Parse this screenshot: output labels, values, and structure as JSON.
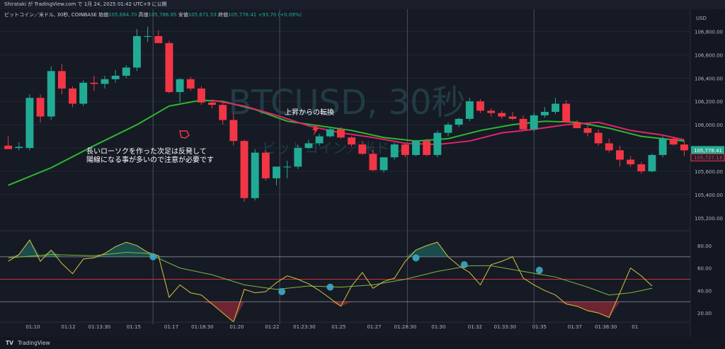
{
  "header": {
    "publish_line": "Shirataki が TradingView.com で 1月 24, 2025 01:42 UTC+9 に公開"
  },
  "footer": {
    "brand": "TradingView",
    "logo_glyph": "TV"
  },
  "legend": {
    "symbol": "ビットコイン／米ドル, 30秒, COINBASE",
    "open_label": "始値",
    "open": "105,684.70",
    "high_label": "高値",
    "high": "105,786.85",
    "low_label": "安値",
    "low": "105,671.53",
    "close_label": "終値",
    "close": "105,778.41",
    "change": "+93.70 (+0.09%)"
  },
  "watermark": {
    "main": "BTCUSD, 30秒",
    "sub": "ビットコイン／米ドル"
  },
  "annotations": {
    "note_line1": "長いローソクを作った次足は反発して",
    "note_line2": "陽線になる事が多いので注意が必要です",
    "trend_text": "上昇からの転換"
  },
  "currency_label": "USD",
  "price_badges": {
    "last": "105,778.41",
    "ma": "105,727.13"
  },
  "colors": {
    "up": "#22ab94",
    "down": "#f23645",
    "ma_fast": "#2db82d",
    "ma_slow": "#e0246c",
    "osc": "#d4c43a",
    "osc_signal": "#7fb83a",
    "cross_marker": "#3fa9c4",
    "bg": "#161a25",
    "grid": "#232734"
  },
  "chart_data": {
    "type": "candlestick",
    "price_axis": {
      "ticks": [
        105400,
        105600,
        105800,
        106000,
        106200,
        106400,
        106600,
        106800
      ],
      "tick_labels": [
        "105,400.00",
        "105,600.00",
        "105,800.00",
        "106,000.00",
        "106,200.00",
        "106,400.00",
        "106,600.00",
        "106,800.00",
        "105,200.00"
      ],
      "bottom_label_value": 105200,
      "ylim": [
        105120,
        106930
      ]
    },
    "time_axis": {
      "labels": [
        "01:10",
        "01:12",
        "01:13:30",
        "01:15",
        "01:17",
        "01:18:30",
        "01:20",
        "01:22",
        "01:23:30",
        "01:25",
        "01:27",
        "01:28:30",
        "01:30",
        "01:32",
        "01:33:30",
        "01:35",
        "01:37",
        "01:38:30",
        "01"
      ],
      "label_candle_index": [
        2.3,
        5.6,
        8.5,
        11.7,
        15.2,
        18.1,
        21.3,
        24.6,
        27.6,
        30.8,
        34.1,
        37.0,
        40.1,
        43.5,
        46.3,
        49.5,
        52.8,
        55.7,
        58.4
      ]
    },
    "candles": [
      {
        "o": 105820,
        "h": 105900,
        "l": 105800,
        "c": 105790
      },
      {
        "o": 105800,
        "h": 105850,
        "l": 105780,
        "c": 105810
      },
      {
        "o": 105800,
        "h": 106260,
        "l": 105780,
        "c": 106230
      },
      {
        "o": 106230,
        "h": 106260,
        "l": 106020,
        "c": 106070
      },
      {
        "o": 106070,
        "h": 106500,
        "l": 106040,
        "c": 106460
      },
      {
        "o": 106460,
        "h": 106520,
        "l": 106260,
        "c": 106310
      },
      {
        "o": 106310,
        "h": 106330,
        "l": 106150,
        "c": 106180
      },
      {
        "o": 106180,
        "h": 106380,
        "l": 106160,
        "c": 106360
      },
      {
        "o": 106360,
        "h": 106420,
        "l": 106290,
        "c": 106350
      },
      {
        "o": 106350,
        "h": 106420,
        "l": 106310,
        "c": 106390
      },
      {
        "o": 106390,
        "h": 106470,
        "l": 106360,
        "c": 106420
      },
      {
        "o": 106420,
        "h": 106510,
        "l": 106400,
        "c": 106490
      },
      {
        "o": 106490,
        "h": 106820,
        "l": 106460,
        "c": 106760
      },
      {
        "o": 106760,
        "h": 106840,
        "l": 106710,
        "c": 106760
      },
      {
        "o": 106760,
        "h": 106810,
        "l": 106700,
        "c": 106700
      },
      {
        "o": 106700,
        "h": 106720,
        "l": 106270,
        "c": 106280
      },
      {
        "o": 106280,
        "h": 106400,
        "l": 106190,
        "c": 106390
      },
      {
        "o": 106390,
        "h": 106410,
        "l": 106290,
        "c": 106310
      },
      {
        "o": 106310,
        "h": 106330,
        "l": 106170,
        "c": 106190
      },
      {
        "o": 106190,
        "h": 106210,
        "l": 106140,
        "c": 106170
      },
      {
        "o": 106170,
        "h": 106200,
        "l": 106000,
        "c": 106040
      },
      {
        "o": 106040,
        "h": 106100,
        "l": 105820,
        "c": 105860
      },
      {
        "o": 105860,
        "h": 105870,
        "l": 105340,
        "c": 105370
      },
      {
        "o": 105370,
        "h": 105790,
        "l": 105350,
        "c": 105760
      },
      {
        "o": 105760,
        "h": 105780,
        "l": 105520,
        "c": 105540
      },
      {
        "o": 105540,
        "h": 105640,
        "l": 105480,
        "c": 105640
      },
      {
        "o": 105640,
        "h": 105690,
        "l": 105540,
        "c": 105640
      },
      {
        "o": 105640,
        "h": 105830,
        "l": 105620,
        "c": 105800
      },
      {
        "o": 105800,
        "h": 105870,
        "l": 105790,
        "c": 105840
      },
      {
        "o": 105840,
        "h": 105920,
        "l": 105820,
        "c": 105900
      },
      {
        "o": 105900,
        "h": 105980,
        "l": 105890,
        "c": 105960
      },
      {
        "o": 105960,
        "h": 105980,
        "l": 105880,
        "c": 105890
      },
      {
        "o": 105890,
        "h": 105900,
        "l": 105810,
        "c": 105830
      },
      {
        "o": 105830,
        "h": 105860,
        "l": 105740,
        "c": 105750
      },
      {
        "o": 105750,
        "h": 105790,
        "l": 105600,
        "c": 105610
      },
      {
        "o": 105610,
        "h": 105720,
        "l": 105590,
        "c": 105720
      },
      {
        "o": 105720,
        "h": 105840,
        "l": 105700,
        "c": 105830
      },
      {
        "o": 105830,
        "h": 105840,
        "l": 105720,
        "c": 105740
      },
      {
        "o": 105740,
        "h": 105870,
        "l": 105730,
        "c": 105860
      },
      {
        "o": 105860,
        "h": 105880,
        "l": 105730,
        "c": 105740
      },
      {
        "o": 105740,
        "h": 105950,
        "l": 105720,
        "c": 105930
      },
      {
        "o": 105930,
        "h": 106020,
        "l": 105900,
        "c": 106000
      },
      {
        "o": 106000,
        "h": 106060,
        "l": 105980,
        "c": 106050
      },
      {
        "o": 106050,
        "h": 106230,
        "l": 106030,
        "c": 106200
      },
      {
        "o": 106200,
        "h": 106220,
        "l": 106100,
        "c": 106120
      },
      {
        "o": 106120,
        "h": 106140,
        "l": 106070,
        "c": 106100
      },
      {
        "o": 106100,
        "h": 106120,
        "l": 106050,
        "c": 106070
      },
      {
        "o": 106070,
        "h": 106110,
        "l": 106040,
        "c": 106050
      },
      {
        "o": 106050,
        "h": 106080,
        "l": 105950,
        "c": 105960
      },
      {
        "o": 105960,
        "h": 106100,
        "l": 105940,
        "c": 106080
      },
      {
        "o": 106080,
        "h": 106150,
        "l": 106060,
        "c": 106110
      },
      {
        "o": 106110,
        "h": 106230,
        "l": 106090,
        "c": 106180
      },
      {
        "o": 106180,
        "h": 106210,
        "l": 106020,
        "c": 106020
      },
      {
        "o": 106020,
        "h": 106040,
        "l": 105970,
        "c": 105970
      },
      {
        "o": 105970,
        "h": 106000,
        "l": 105900,
        "c": 105930
      },
      {
        "o": 105930,
        "h": 105960,
        "l": 105820,
        "c": 105840
      },
      {
        "o": 105840,
        "h": 105880,
        "l": 105760,
        "c": 105780
      },
      {
        "o": 105780,
        "h": 105820,
        "l": 105640,
        "c": 105700
      },
      {
        "o": 105700,
        "h": 105730,
        "l": 105640,
        "c": 105660
      },
      {
        "o": 105660,
        "h": 105680,
        "l": 105580,
        "c": 105600
      },
      {
        "o": 105600,
        "h": 105750,
        "l": 105590,
        "c": 105740
      },
      {
        "o": 105740,
        "h": 105900,
        "l": 105720,
        "c": 105880
      },
      {
        "o": 105880,
        "h": 105890,
        "l": 105820,
        "c": 105830
      },
      {
        "o": 105830,
        "h": 105860,
        "l": 105730,
        "c": 105780
      }
    ],
    "ma_fast": [
      [
        0,
        105480
      ],
      [
        4,
        105630
      ],
      [
        8,
        105820
      ],
      [
        12,
        106000
      ],
      [
        15,
        106160
      ],
      [
        18,
        106210
      ],
      [
        20,
        106200
      ],
      [
        23,
        106130
      ],
      [
        26,
        106030
      ],
      [
        29,
        105990
      ],
      [
        32,
        105950
      ],
      [
        35,
        105890
      ],
      [
        38,
        105860
      ],
      [
        41,
        105880
      ],
      [
        44,
        105950
      ],
      [
        47,
        106000
      ],
      [
        50,
        106030
      ],
      [
        53,
        106020
      ],
      [
        56,
        105970
      ],
      [
        59,
        105900
      ],
      [
        63,
        105860
      ]
    ],
    "ma_slow": [
      [
        19,
        106210
      ],
      [
        22,
        106160
      ],
      [
        25,
        106080
      ],
      [
        28,
        105990
      ],
      [
        31,
        105930
      ],
      [
        34,
        105890
      ],
      [
        37,
        105840
      ],
      [
        40,
        105830
      ],
      [
        43,
        105860
      ],
      [
        46,
        105930
      ],
      [
        49,
        105960
      ],
      [
        52,
        106000
      ],
      [
        55,
        106020
      ],
      [
        58,
        105950
      ],
      [
        61,
        105910
      ],
      [
        63,
        105870
      ]
    ],
    "oscillator": {
      "ylim": [
        10,
        90
      ],
      "levels": [
        70,
        50,
        30
      ],
      "tick_labels": [
        "80.00",
        "60.00",
        "40.00",
        "20.00"
      ],
      "ticks": [
        80,
        60,
        40,
        20
      ],
      "line": [
        [
          0,
          66
        ],
        [
          1,
          72
        ],
        [
          2,
          85
        ],
        [
          3,
          66
        ],
        [
          4,
          76
        ],
        [
          5,
          64
        ],
        [
          6,
          55
        ],
        [
          7,
          68
        ],
        [
          8,
          69
        ],
        [
          9,
          73
        ],
        [
          10,
          79
        ],
        [
          11,
          83
        ],
        [
          12,
          80
        ],
        [
          13,
          74
        ],
        [
          14,
          71
        ],
        [
          15,
          34
        ],
        [
          16,
          45
        ],
        [
          17,
          38
        ],
        [
          18,
          36
        ],
        [
          19,
          28
        ],
        [
          20,
          20
        ],
        [
          21,
          12
        ],
        [
          22,
          41
        ],
        [
          23,
          38
        ],
        [
          24,
          39
        ],
        [
          25,
          47
        ],
        [
          26,
          53
        ],
        [
          27,
          50
        ],
        [
          28,
          46
        ],
        [
          29,
          40
        ],
        [
          30,
          33
        ],
        [
          31,
          26
        ],
        [
          32,
          44
        ],
        [
          33,
          56
        ],
        [
          34,
          42
        ],
        [
          35,
          48
        ],
        [
          36,
          51
        ],
        [
          37,
          66
        ],
        [
          38,
          76
        ],
        [
          39,
          80
        ],
        [
          40,
          83
        ],
        [
          41,
          70
        ],
        [
          42,
          62
        ],
        [
          43,
          56
        ],
        [
          44,
          45
        ],
        [
          45,
          63
        ],
        [
          46,
          66
        ],
        [
          47,
          70
        ],
        [
          48,
          51
        ],
        [
          49,
          45
        ],
        [
          50,
          40
        ],
        [
          51,
          36
        ],
        [
          52,
          28
        ],
        [
          53,
          26
        ],
        [
          54,
          22
        ],
        [
          55,
          20
        ],
        [
          56,
          16
        ],
        [
          57,
          38
        ],
        [
          58,
          60
        ],
        [
          59,
          53
        ],
        [
          60,
          44
        ]
      ],
      "signal": [
        [
          0,
          69
        ],
        [
          4,
          72
        ],
        [
          8,
          71
        ],
        [
          11,
          74
        ],
        [
          13,
          73
        ],
        [
          16,
          60
        ],
        [
          19,
          54
        ],
        [
          22,
          45
        ],
        [
          25,
          41
        ],
        [
          28,
          44
        ],
        [
          31,
          43
        ],
        [
          34,
          45
        ],
        [
          37,
          50
        ],
        [
          40,
          57
        ],
        [
          43,
          62
        ],
        [
          45,
          62
        ],
        [
          48,
          57
        ],
        [
          51,
          52
        ],
        [
          54,
          43
        ],
        [
          56,
          36
        ],
        [
          58,
          38
        ],
        [
          60,
          42
        ]
      ],
      "cross_markers": [
        [
          13.5,
          70
        ],
        [
          25.5,
          39
        ],
        [
          30.0,
          43
        ],
        [
          38.0,
          69
        ],
        [
          42.5,
          63
        ],
        [
          49.5,
          58
        ]
      ]
    },
    "sessions_vlines_at_candle": [
      13.5,
      25.3,
      37.2,
      49.0
    ],
    "title": "",
    "xlabel": "",
    "ylabel": ""
  }
}
